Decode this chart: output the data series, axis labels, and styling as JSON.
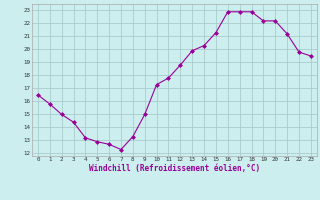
{
  "x": [
    0,
    1,
    2,
    3,
    4,
    5,
    6,
    7,
    8,
    9,
    10,
    11,
    12,
    13,
    14,
    15,
    16,
    17,
    18,
    19,
    20,
    21,
    22,
    23
  ],
  "y": [
    16.5,
    15.8,
    15.0,
    14.4,
    13.2,
    12.9,
    12.7,
    12.3,
    13.3,
    15.0,
    17.3,
    17.8,
    18.8,
    19.9,
    20.3,
    21.3,
    22.9,
    22.9,
    22.9,
    22.2,
    22.2,
    21.2,
    19.8,
    19.5
  ],
  "line_color": "#990099",
  "marker": "D",
  "marker_size": 2,
  "bg_color": "#cceeee",
  "grid_color": "#aacccc",
  "xlabel": "Windchill (Refroidissement éolien,°C)",
  "xlabel_color": "#990099",
  "ylabel_ticks": [
    12,
    13,
    14,
    15,
    16,
    17,
    18,
    19,
    20,
    21,
    22,
    23
  ],
  "xlim": [
    -0.5,
    23.5
  ],
  "ylim": [
    11.8,
    23.5
  ]
}
